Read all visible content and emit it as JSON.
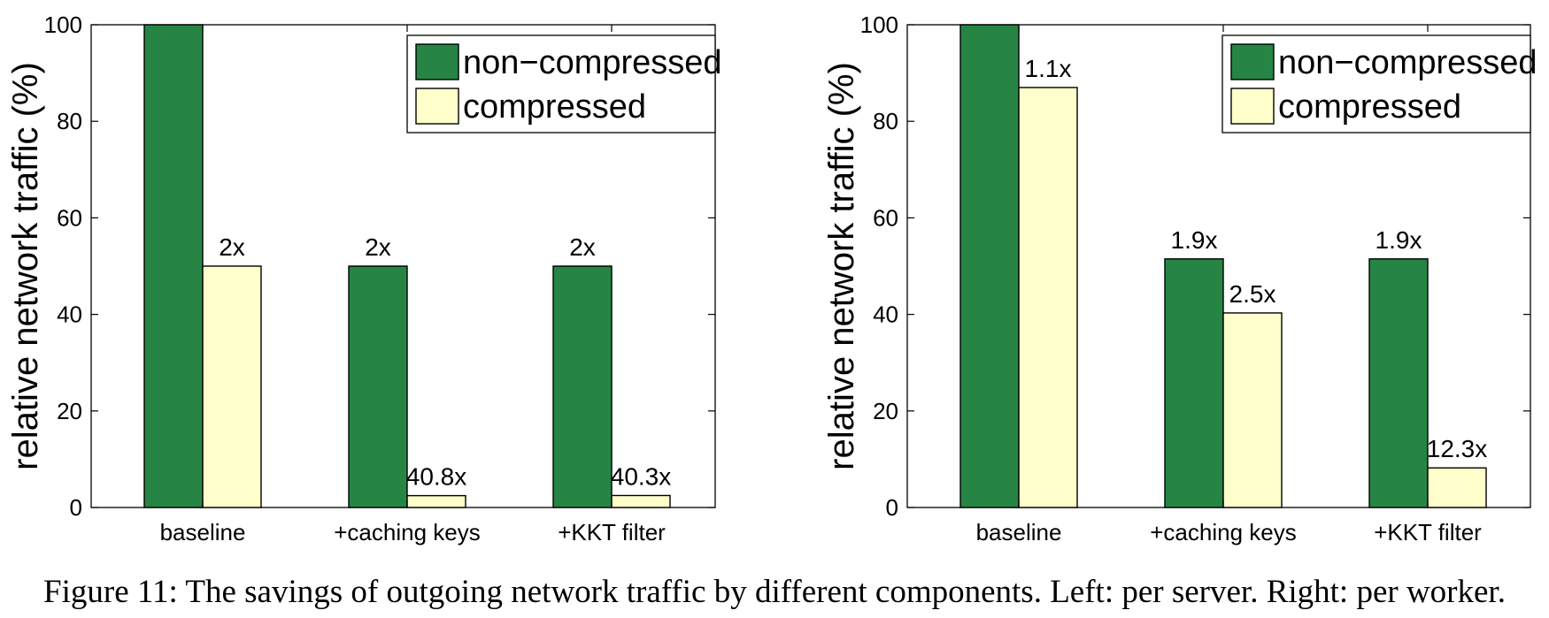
{
  "chart_data": [
    {
      "type": "bar",
      "ylabel": "relative network traffic (%)",
      "ylim": [
        0,
        100
      ],
      "yticks": [
        0,
        20,
        40,
        60,
        80,
        100
      ],
      "categories": [
        "baseline",
        "+caching keys",
        "+KKT filter"
      ],
      "legend": {
        "placement": "top-right"
      },
      "series": [
        {
          "name": "non−compressed",
          "color": "#268545",
          "values": [
            100,
            50,
            50
          ],
          "labels": [
            "",
            "2x",
            "2x"
          ]
        },
        {
          "name": "compressed",
          "color": "#ffffcc",
          "values": [
            50,
            2.45,
            2.48
          ],
          "labels": [
            "2x",
            "40.8x",
            "40.3x"
          ]
        }
      ]
    },
    {
      "type": "bar",
      "ylabel": "relative network traffic (%)",
      "ylim": [
        0,
        100
      ],
      "yticks": [
        0,
        20,
        40,
        60,
        80,
        100
      ],
      "categories": [
        "baseline",
        "+caching keys",
        "+KKT filter"
      ],
      "legend": {
        "placement": "top-right"
      },
      "series": [
        {
          "name": "non−compressed",
          "color": "#268545",
          "values": [
            100,
            51.5,
            51.5
          ],
          "labels": [
            "",
            "1.9x",
            "1.9x"
          ]
        },
        {
          "name": "compressed",
          "color": "#ffffcc",
          "values": [
            87,
            40.3,
            8.2
          ],
          "labels": [
            "1.1x",
            "2.5x",
            "12.3x"
          ]
        }
      ]
    }
  ],
  "caption": "Figure 11: The savings of outgoing network traffic by different components. Left: per server. Right: per worker."
}
